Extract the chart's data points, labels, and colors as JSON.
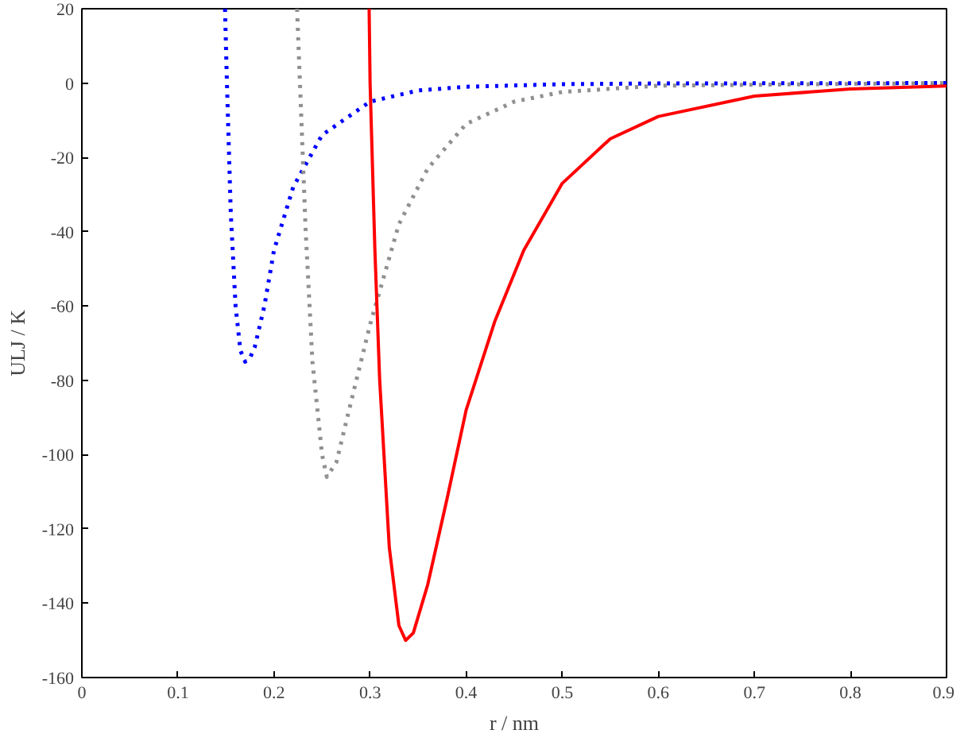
{
  "chart_data": {
    "type": "line",
    "xlabel": "r / nm",
    "ylabel": "ULJ / K",
    "xlim": [
      0,
      0.9
    ],
    "ylim": [
      -160,
      20
    ],
    "xticks": [
      0,
      0.1,
      0.2,
      0.3,
      0.4,
      0.5,
      0.6,
      0.7,
      0.8,
      0.9
    ],
    "yticks": [
      -160,
      -140,
      -120,
      -100,
      -80,
      -60,
      -40,
      -20,
      0,
      20
    ],
    "grid": false,
    "series": [
      {
        "color": "#0000ff",
        "line_style": "dotted",
        "x": [
          0.149,
          0.151,
          0.155,
          0.16,
          0.165,
          0.17,
          0.175,
          0.18,
          0.19,
          0.2,
          0.22,
          0.25,
          0.3,
          0.35,
          0.4,
          0.5,
          0.6,
          0.9
        ],
        "values": [
          20,
          0,
          -35,
          -60,
          -72,
          -75,
          -74,
          -71,
          -60,
          -45,
          -28,
          -14,
          -5,
          -2,
          -1,
          -0.3,
          -0.1,
          0
        ]
      },
      {
        "color": "#909090",
        "line_style": "dotted",
        "x": [
          0.224,
          0.227,
          0.233,
          0.24,
          0.25,
          0.255,
          0.265,
          0.28,
          0.3,
          0.33,
          0.36,
          0.4,
          0.45,
          0.5,
          0.6,
          0.9
        ],
        "values": [
          20,
          0,
          -40,
          -75,
          -100,
          -106,
          -102,
          -86,
          -65,
          -38,
          -23,
          -11,
          -5,
          -2.4,
          -0.7,
          0
        ]
      },
      {
        "color": "#ff0000",
        "line_style": "solid",
        "x": [
          0.299,
          0.3,
          0.305,
          0.31,
          0.32,
          0.33,
          0.337,
          0.345,
          0.36,
          0.38,
          0.4,
          0.43,
          0.46,
          0.5,
          0.55,
          0.6,
          0.7,
          0.8,
          0.9
        ],
        "values": [
          20,
          0,
          -45,
          -80,
          -125,
          -146,
          -150,
          -148,
          -135,
          -112,
          -88,
          -64,
          -45,
          -27,
          -15,
          -9,
          -3.5,
          -1.6,
          -0.8
        ]
      }
    ]
  }
}
